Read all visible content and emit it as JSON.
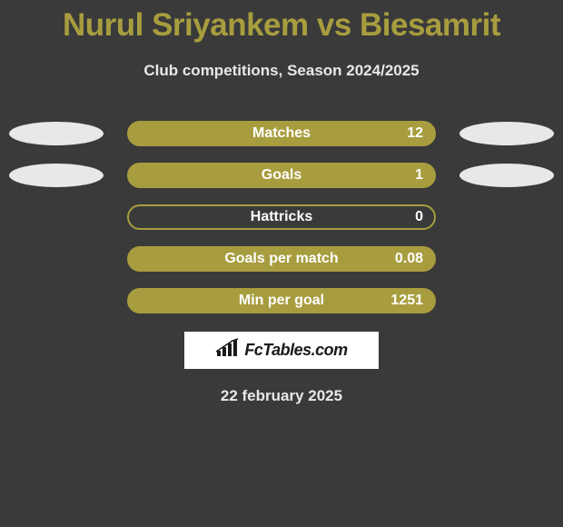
{
  "title": "Nurul Sriyankem vs Biesamrit",
  "subtitle": "Club competitions, Season 2024/2025",
  "colors": {
    "background": "#3a3a3a",
    "accent": "#a89d3e",
    "ellipse": "#e8e8e8",
    "text_light": "#e8e8e8",
    "text_white": "#ffffff",
    "badge_bg": "#ffffff",
    "badge_text": "#1a1a1a"
  },
  "stats": [
    {
      "label": "Matches",
      "value": "12",
      "filled": true,
      "show_left_ellipse": true,
      "show_right_ellipse": true
    },
    {
      "label": "Goals",
      "value": "1",
      "filled": true,
      "show_left_ellipse": true,
      "show_right_ellipse": true
    },
    {
      "label": "Hattricks",
      "value": "0",
      "filled": false,
      "show_left_ellipse": false,
      "show_right_ellipse": false
    },
    {
      "label": "Goals per match",
      "value": "0.08",
      "filled": true,
      "show_left_ellipse": false,
      "show_right_ellipse": false
    },
    {
      "label": "Min per goal",
      "value": "1251",
      "filled": true,
      "show_left_ellipse": false,
      "show_right_ellipse": false
    }
  ],
  "brand": {
    "name": "FcTables.com",
    "icon_name": "bar-chart-icon"
  },
  "date": "22 february 2025"
}
